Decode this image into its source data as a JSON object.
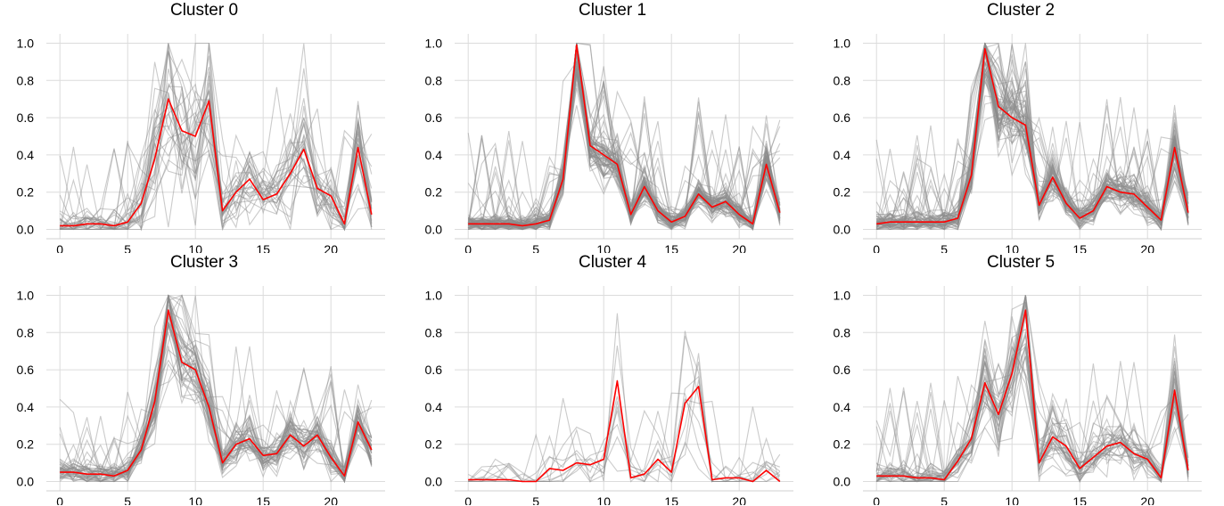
{
  "chart_data": [
    {
      "type": "line",
      "title": "Cluster 0",
      "xlabel": "",
      "ylabel": "",
      "xlim": [
        -1,
        24
      ],
      "ylim": [
        -0.05,
        1.05
      ],
      "x_ticks": [
        0,
        5,
        10,
        15,
        20
      ],
      "y_ticks": [
        "0.0",
        "0.2",
        "0.4",
        "0.6",
        "0.8",
        "1.0"
      ],
      "grid": true,
      "colors": {
        "centroid": "#ff0000",
        "members": "#8c8c8c"
      },
      "x": [
        0,
        1,
        2,
        3,
        4,
        5,
        6,
        7,
        8,
        9,
        10,
        11,
        12,
        13,
        14,
        15,
        16,
        17,
        18,
        19,
        20,
        21,
        22,
        23
      ],
      "series": [
        {
          "values": [
            0.02,
            0.02,
            0.03,
            0.03,
            0.02,
            0.04,
            0.14,
            0.38,
            0.7,
            0.53,
            0.5,
            0.69,
            0.1,
            0.2,
            0.27,
            0.16,
            0.19,
            0.3,
            0.43,
            0.22,
            0.18,
            0.03,
            0.44,
            0.08
          ]
        }
      ],
      "member_band": {
        "seed": 11,
        "count": 28,
        "spread": 0.28
      }
    },
    {
      "type": "line",
      "title": "Cluster 1",
      "xlabel": "",
      "ylabel": "",
      "xlim": [
        -1,
        24
      ],
      "ylim": [
        -0.05,
        1.05
      ],
      "x_ticks": [
        0,
        5,
        10,
        15,
        20
      ],
      "y_ticks": [
        "0.0",
        "0.2",
        "0.4",
        "0.6",
        "0.8",
        "1.0"
      ],
      "grid": true,
      "colors": {
        "centroid": "#ff0000",
        "members": "#8c8c8c"
      },
      "x": [
        0,
        1,
        2,
        3,
        4,
        5,
        6,
        7,
        8,
        9,
        10,
        11,
        12,
        13,
        14,
        15,
        16,
        17,
        18,
        19,
        20,
        21,
        22,
        23
      ],
      "series": [
        {
          "values": [
            0.03,
            0.03,
            0.03,
            0.03,
            0.02,
            0.03,
            0.05,
            0.27,
            0.99,
            0.45,
            0.4,
            0.35,
            0.08,
            0.23,
            0.1,
            0.04,
            0.07,
            0.19,
            0.12,
            0.15,
            0.08,
            0.03,
            0.35,
            0.09
          ]
        }
      ],
      "member_band": {
        "seed": 23,
        "count": 70,
        "spread": 0.12
      }
    },
    {
      "type": "line",
      "title": "Cluster 2",
      "xlabel": "",
      "ylabel": "",
      "xlim": [
        -1,
        24
      ],
      "ylim": [
        -0.05,
        1.05
      ],
      "x_ticks": [
        0,
        5,
        10,
        15,
        20
      ],
      "y_ticks": [
        "0.0",
        "0.2",
        "0.4",
        "0.6",
        "0.8",
        "1.0"
      ],
      "grid": true,
      "colors": {
        "centroid": "#ff0000",
        "members": "#8c8c8c"
      },
      "x": [
        0,
        1,
        2,
        3,
        4,
        5,
        6,
        7,
        8,
        9,
        10,
        11,
        12,
        13,
        14,
        15,
        16,
        17,
        18,
        19,
        20,
        21,
        22,
        23
      ],
      "series": [
        {
          "values": [
            0.03,
            0.04,
            0.04,
            0.04,
            0.04,
            0.04,
            0.06,
            0.29,
            0.97,
            0.66,
            0.6,
            0.56,
            0.13,
            0.28,
            0.14,
            0.06,
            0.1,
            0.23,
            0.2,
            0.19,
            0.12,
            0.05,
            0.44,
            0.09
          ]
        }
      ],
      "member_band": {
        "seed": 37,
        "count": 60,
        "spread": 0.15
      }
    },
    {
      "type": "line",
      "title": "Cluster 3",
      "xlabel": "",
      "ylabel": "",
      "xlim": [
        -1,
        24
      ],
      "ylim": [
        -0.05,
        1.05
      ],
      "x_ticks": [
        0,
        5,
        10,
        15,
        20
      ],
      "y_ticks": [
        "0.0",
        "0.2",
        "0.4",
        "0.6",
        "0.8",
        "1.0"
      ],
      "grid": true,
      "colors": {
        "centroid": "#ff0000",
        "members": "#8c8c8c"
      },
      "x": [
        0,
        1,
        2,
        3,
        4,
        5,
        6,
        7,
        8,
        9,
        10,
        11,
        12,
        13,
        14,
        15,
        16,
        17,
        18,
        19,
        20,
        21,
        22,
        23
      ],
      "series": [
        {
          "values": [
            0.05,
            0.05,
            0.04,
            0.04,
            0.03,
            0.06,
            0.17,
            0.43,
            0.92,
            0.64,
            0.6,
            0.4,
            0.1,
            0.2,
            0.23,
            0.14,
            0.15,
            0.25,
            0.19,
            0.25,
            0.13,
            0.03,
            0.32,
            0.17
          ]
        }
      ],
      "member_band": {
        "seed": 53,
        "count": 45,
        "spread": 0.16
      }
    },
    {
      "type": "line",
      "title": "Cluster 4",
      "xlabel": "",
      "ylabel": "",
      "xlim": [
        -1,
        24
      ],
      "ylim": [
        -0.05,
        1.05
      ],
      "x_ticks": [
        0,
        5,
        10,
        15,
        20
      ],
      "y_ticks": [
        "0.0",
        "0.2",
        "0.4",
        "0.6",
        "0.8",
        "1.0"
      ],
      "grid": true,
      "colors": {
        "centroid": "#ff0000",
        "members": "#8c8c8c"
      },
      "x": [
        0,
        1,
        2,
        3,
        4,
        5,
        6,
        7,
        8,
        9,
        10,
        11,
        12,
        13,
        14,
        15,
        16,
        17,
        18,
        19,
        20,
        21,
        22,
        23
      ],
      "series": [
        {
          "values": [
            0.01,
            0.01,
            0.01,
            0.01,
            0.0,
            0.0,
            0.07,
            0.06,
            0.1,
            0.09,
            0.12,
            0.54,
            0.02,
            0.04,
            0.12,
            0.05,
            0.42,
            0.51,
            0.01,
            0.02,
            0.02,
            0.0,
            0.06,
            0.0
          ]
        }
      ],
      "member_band": {
        "seed": 71,
        "count": 10,
        "spread": 0.35
      }
    },
    {
      "type": "line",
      "title": "Cluster 5",
      "xlabel": "",
      "ylabel": "",
      "xlim": [
        -1,
        24
      ],
      "ylim": [
        -0.05,
        1.05
      ],
      "x_ticks": [
        0,
        5,
        10,
        15,
        20
      ],
      "y_ticks": [
        "0.0",
        "0.2",
        "0.4",
        "0.6",
        "0.8",
        "1.0"
      ],
      "grid": true,
      "colors": {
        "centroid": "#ff0000",
        "members": "#8c8c8c"
      },
      "x": [
        0,
        1,
        2,
        3,
        4,
        5,
        6,
        7,
        8,
        9,
        10,
        11,
        12,
        13,
        14,
        15,
        16,
        17,
        18,
        19,
        20,
        21,
        22,
        23
      ],
      "series": [
        {
          "values": [
            0.03,
            0.03,
            0.03,
            0.02,
            0.02,
            0.01,
            0.11,
            0.23,
            0.53,
            0.36,
            0.58,
            0.92,
            0.1,
            0.24,
            0.19,
            0.07,
            0.13,
            0.19,
            0.21,
            0.15,
            0.12,
            0.02,
            0.49,
            0.06
          ]
        }
      ],
      "member_band": {
        "seed": 97,
        "count": 35,
        "spread": 0.2
      }
    }
  ]
}
